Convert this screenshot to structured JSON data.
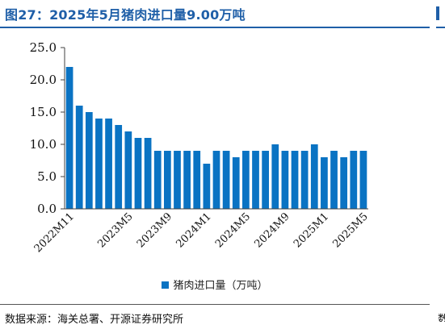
{
  "figure": {
    "title": "图27：2025年5月猪肉进口量9.00万吨",
    "source": "数据来源：海关总署、开源证券研究所"
  },
  "colors": {
    "title": "#1f5fa8",
    "bar": "#0a73c3",
    "axis": "#404040"
  },
  "chart_data": {
    "type": "bar",
    "title": "",
    "xlabel": "",
    "ylabel": "",
    "ylim": [
      0,
      25
    ],
    "yticks": [
      0,
      5,
      10,
      15,
      20,
      25
    ],
    "ytick_labels": [
      "0.0",
      "5.0",
      "10.0",
      "15.0",
      "20.0",
      "25.0"
    ],
    "grid": false,
    "legend_position": "bottom",
    "categories": [
      "2022M11",
      "2022M12",
      "2023M1",
      "2023M2",
      "2023M3",
      "2023M4",
      "2023M5",
      "2023M6",
      "2023M7",
      "2023M8",
      "2023M9",
      "2023M10",
      "2023M11",
      "2023M12",
      "2024M1",
      "2024M2",
      "2024M3",
      "2024M4",
      "2024M5",
      "2024M6",
      "2024M7",
      "2024M8",
      "2024M9",
      "2024M10",
      "2024M11",
      "2024M12",
      "2025M1",
      "2025M2",
      "2025M3",
      "2025M4",
      "2025M5"
    ],
    "xtick_labels": [
      "2022M11",
      "2023M5",
      "2023M9",
      "2024M1",
      "2024M5",
      "2024M9",
      "2025M1",
      "2025M5"
    ],
    "series": [
      {
        "name": "猪肉进口量（万吨）",
        "values": [
          22,
          16,
          15,
          14,
          14,
          13,
          12,
          11,
          11,
          9,
          9,
          9,
          9,
          9,
          7,
          9,
          9,
          8,
          9,
          9,
          9,
          10,
          9,
          9,
          9,
          10,
          8,
          9,
          8,
          9,
          9
        ]
      }
    ]
  }
}
